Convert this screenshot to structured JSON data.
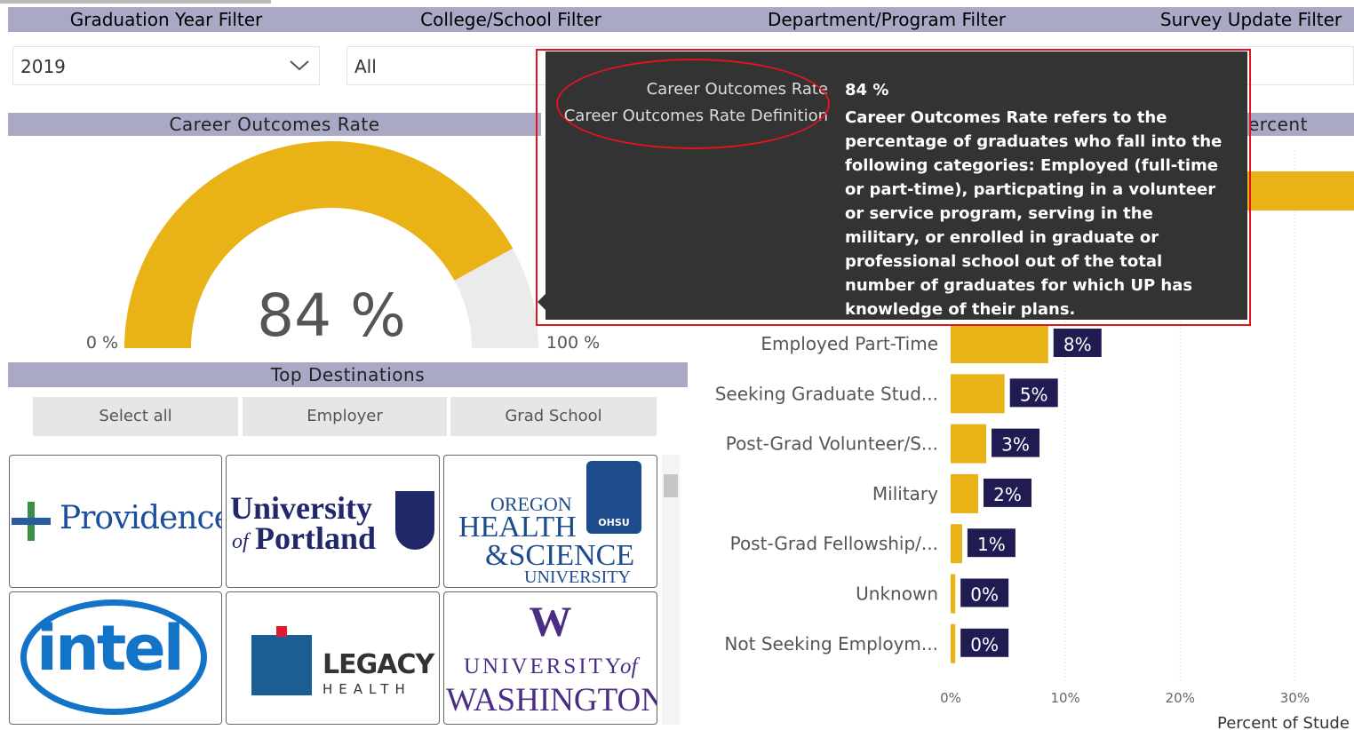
{
  "filters": [
    {
      "label": "Graduation Year Filter",
      "selected": "2019"
    },
    {
      "label": "College/School Filter",
      "selected": "All"
    },
    {
      "label": "Department/Program Filter"
    },
    {
      "label": "Survey Update Filter"
    }
  ],
  "gauge": {
    "title": "Career Outcomes Rate",
    "value": 84,
    "value_label": "84 %",
    "min": {
      "value": 0,
      "label": "0 %"
    },
    "max": {
      "value": 100,
      "label": "100 %"
    },
    "color": "#e9b216",
    "track_color": "#ebebeb"
  },
  "tooltip": {
    "rows": [
      {
        "label": "Career Outcomes Rate",
        "value": "84 %"
      },
      {
        "label": "Career Outcomes Rate Definition",
        "value": "Career Outcomes Rate refers to the percentage of graduates who fall into the following categories: Employed (full-time or part-time), particpating in a volunteer or service program, serving in the military, or enrolled in graduate or professional school out of the total number of graduates for which UP has knowledge of their plans."
      }
    ]
  },
  "top_destinations": {
    "title": "Top Destinations",
    "buttons": [
      "Select all",
      "Employer",
      "Grad School"
    ]
  },
  "logos": [
    {
      "lines": [
        "Providence"
      ]
    },
    {
      "lines": [
        "University",
        "of",
        "Portland"
      ]
    },
    {
      "lines": [
        "OREGON",
        "HEALTH",
        "&SCIENCE",
        "UNIVERSITY",
        "OHSU"
      ]
    },
    {
      "lines": [
        "intel"
      ]
    },
    {
      "lines": [
        "LEGACY",
        "HEALTH"
      ]
    },
    {
      "lines": [
        "W",
        "UNIVERSITY",
        "of",
        "WASHINGTON"
      ]
    }
  ],
  "chart_data": {
    "type": "bar",
    "orientation": "horizontal",
    "title": "ercent",
    "categories": [
      null,
      "Employed Part-Time",
      "Seeking Graduate Stud...",
      "Post-Grad Volunteer/S...",
      "Military",
      "Post-Grad Fellowship/...",
      "Unknown",
      "Not Seeking Employm..."
    ],
    "values": [
      40,
      8.5,
      4.7,
      3.1,
      2.4,
      1,
      0.4,
      0.4
    ],
    "value_labels": [
      null,
      "8%",
      "5%",
      "3%",
      "2%",
      "1%",
      "0%",
      "0%"
    ],
    "color": "#e9b216",
    "label_color": "#201c52",
    "xlim": [
      0,
      35
    ],
    "xticks": [
      {
        "value": 0,
        "label": "0%"
      },
      {
        "value": 10,
        "label": "10%"
      },
      {
        "value": 20,
        "label": "20%"
      },
      {
        "value": 30,
        "label": "30%"
      }
    ],
    "x_label": "Percent of Stude",
    "grid": true
  }
}
